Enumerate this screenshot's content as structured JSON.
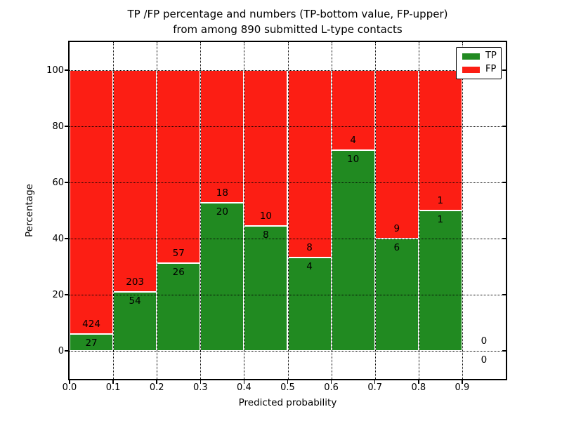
{
  "title": {
    "line1": "TP /FP percentage and numbers (TP-bottom value, FP-upper)",
    "line2": "from among 890 submitted L-type contacts"
  },
  "axes": {
    "xlabel": "Predicted probability",
    "ylabel": "Percentage",
    "xtick_labels": [
      "0.0",
      "0.1",
      "0.2",
      "0.3",
      "0.4",
      "0.5",
      "0.6",
      "0.7",
      "0.8",
      "0.9"
    ],
    "ytick_labels": [
      "0",
      "20",
      "40",
      "60",
      "80",
      "100"
    ],
    "xlim": [
      0.0,
      1.0
    ],
    "ylim": [
      -10,
      110
    ],
    "grid": "dotted-black"
  },
  "legend": {
    "position": "upper-right",
    "items": [
      {
        "label": "TP",
        "color": "#218a21"
      },
      {
        "label": "FP",
        "color": "#fc1e14"
      }
    ]
  },
  "colors": {
    "tp": "#218a21",
    "fp": "#fc1e14",
    "bar_edge": "#ffffff",
    "background": "#ffffff",
    "axis": "#000000"
  },
  "chart_data": {
    "type": "bar",
    "stacked": true,
    "normalized_to_percent": true,
    "title": "TP /FP percentage and numbers (TP-bottom value, FP-upper) from among 890 submitted L-type contacts",
    "xlabel": "Predicted probability",
    "ylabel": "Percentage",
    "total_submitted": 890,
    "categories": [
      "0.0-0.1",
      "0.1-0.2",
      "0.2-0.3",
      "0.3-0.4",
      "0.4-0.5",
      "0.5-0.6",
      "0.6-0.7",
      "0.7-0.8",
      "0.8-0.9",
      "0.9-1.0"
    ],
    "series": [
      {
        "name": "TP",
        "color": "#218a21",
        "counts": [
          27,
          54,
          26,
          20,
          8,
          4,
          10,
          6,
          1,
          0
        ]
      },
      {
        "name": "FP",
        "color": "#fc1e14",
        "counts": [
          424,
          203,
          57,
          18,
          10,
          8,
          4,
          9,
          1,
          0
        ]
      }
    ],
    "tp_percent": [
      6.0,
      21.0,
      31.3,
      52.6,
      44.4,
      33.3,
      71.4,
      40.0,
      50.0,
      0.0
    ],
    "ylim": [
      -10,
      110
    ],
    "xlim": [
      0.0,
      1.0
    ],
    "grid": true,
    "legend_position": "upper right"
  }
}
